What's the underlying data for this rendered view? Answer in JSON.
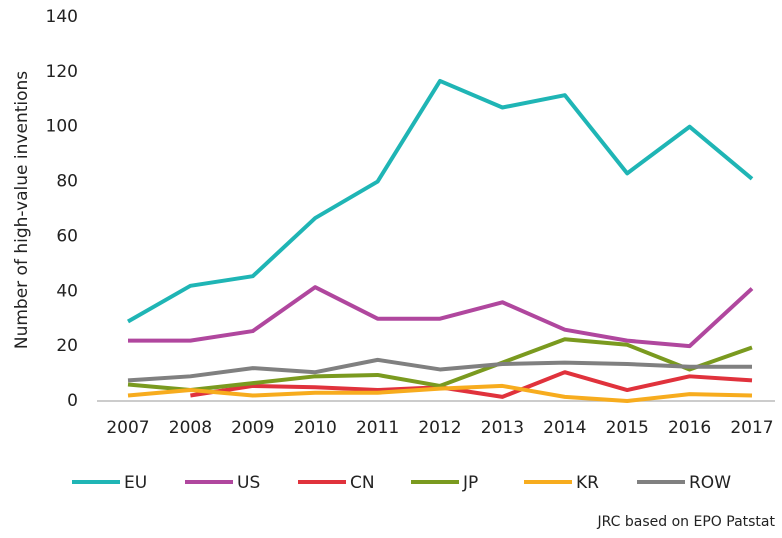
{
  "chart_data": {
    "type": "line",
    "y_label": "Number of high-value inventions",
    "source": "JRC based on EPO Patstat",
    "categories": [
      "2007",
      "2008",
      "2009",
      "2010",
      "2011",
      "2012",
      "2013",
      "2014",
      "2015",
      "2016",
      "2017"
    ],
    "series": [
      {
        "name": "EU",
        "color": "#1fb5b5",
        "values": [
          29,
          42,
          45.5,
          66.7,
          80,
          116.7,
          107,
          111.5,
          83,
          100,
          81
        ]
      },
      {
        "name": "US",
        "color": "#b0479e",
        "values": [
          22,
          22,
          25.5,
          41.5,
          30,
          30,
          36,
          26,
          22,
          20,
          41
        ]
      },
      {
        "name": "CN",
        "color": "#e0323c",
        "values": [
          null,
          2,
          5.5,
          5,
          4,
          5,
          1.5,
          10.5,
          4,
          9,
          7.5
        ]
      },
      {
        "name": "JP",
        "color": "#7a9a1f",
        "values": [
          6,
          4,
          6.5,
          9,
          9.5,
          5.5,
          14,
          22.5,
          20.5,
          11.5,
          19.5
        ]
      },
      {
        "name": "KR",
        "color": "#f7ac1e",
        "values": [
          2,
          4,
          2,
          3,
          3,
          4.5,
          5.5,
          1.5,
          0,
          2.5,
          2
        ]
      },
      {
        "name": "ROW",
        "color": "#808080",
        "values": [
          7.5,
          9,
          12,
          10.5,
          15,
          11.5,
          13.5,
          14,
          13.5,
          12.5,
          12.5
        ]
      }
    ],
    "ylim": [
      0,
      140
    ],
    "yticks": [
      0,
      20,
      40,
      60,
      80,
      100,
      120,
      140
    ],
    "grid": false,
    "legend": "bottom"
  }
}
